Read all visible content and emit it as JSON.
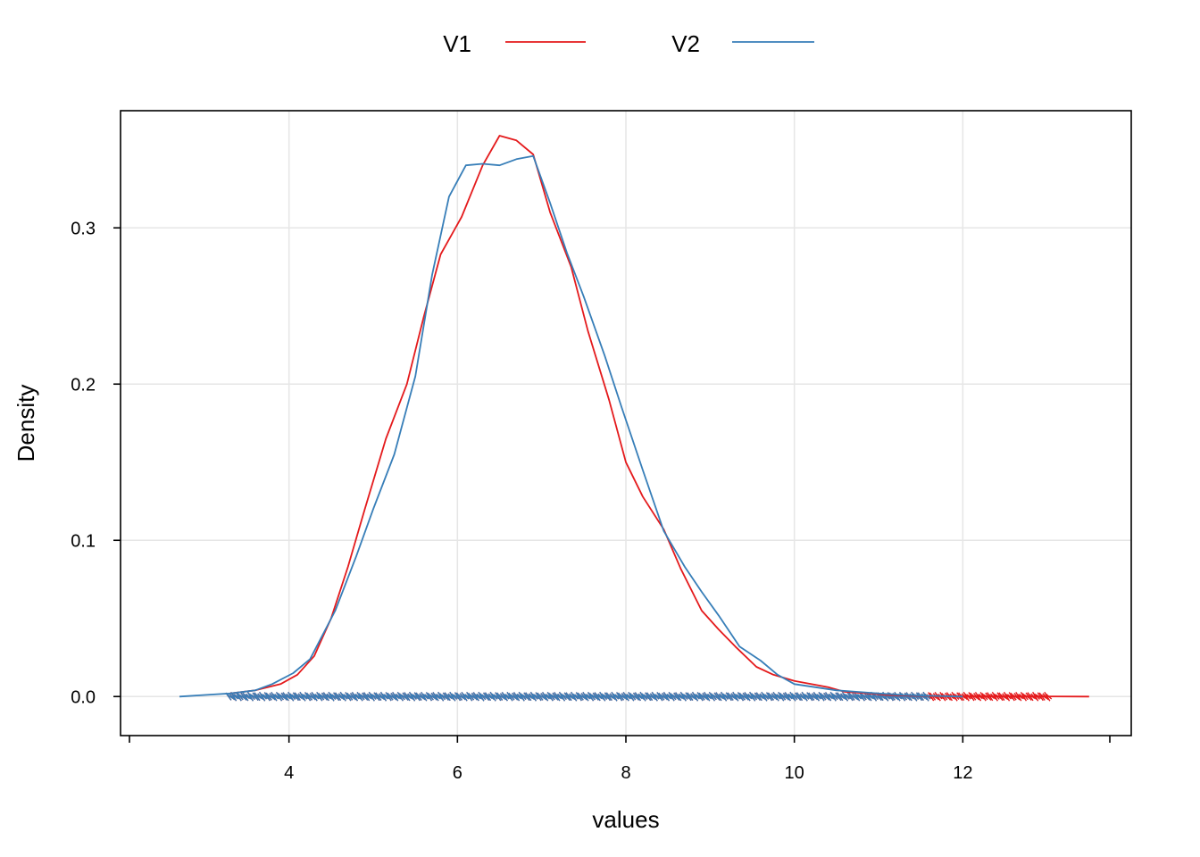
{
  "chart_data": {
    "type": "line",
    "title": "",
    "xlabel": "values",
    "ylabel": "Density",
    "xlim": [
      2.0,
      14.0
    ],
    "ylim": [
      -0.025,
      0.375
    ],
    "x_ticks": [
      4,
      6,
      8,
      10,
      12
    ],
    "x_tick_labels": [
      "4",
      "6",
      "8",
      "10",
      "12"
    ],
    "y_ticks": [
      0.0,
      0.1,
      0.2,
      0.3
    ],
    "y_tick_labels": [
      "0.0",
      "0.1",
      "0.2",
      "0.3"
    ],
    "grid": true,
    "legend": {
      "position": "top",
      "entries": [
        "V1",
        "V2"
      ]
    },
    "series": [
      {
        "name": "V1",
        "color": "#e41a1c",
        "x": [
          3.3,
          3.6,
          3.9,
          4.1,
          4.3,
          4.5,
          4.7,
          4.9,
          5.15,
          5.4,
          5.6,
          5.8,
          6.05,
          6.3,
          6.5,
          6.7,
          6.9,
          7.1,
          7.35,
          7.55,
          7.8,
          8.0,
          8.2,
          8.45,
          8.65,
          8.9,
          9.1,
          9.3,
          9.55,
          9.75,
          10.0,
          10.2,
          10.4,
          10.6,
          10.9,
          11.1,
          11.4,
          11.7,
          12.0,
          12.3,
          12.6,
          13.0,
          13.5
        ],
        "values": [
          0.002,
          0.004,
          0.008,
          0.014,
          0.026,
          0.05,
          0.083,
          0.12,
          0.165,
          0.2,
          0.243,
          0.283,
          0.307,
          0.34,
          0.359,
          0.356,
          0.347,
          0.31,
          0.275,
          0.234,
          0.19,
          0.15,
          0.128,
          0.107,
          0.082,
          0.055,
          0.043,
          0.032,
          0.019,
          0.014,
          0.01,
          0.008,
          0.006,
          0.003,
          0.002,
          0.001,
          0.0005,
          0.0003,
          0.0002,
          0.0001,
          0.0001,
          0.0001,
          0.0
        ]
      },
      {
        "name": "V2",
        "color": "#377eb8",
        "x": [
          2.7,
          3.0,
          3.3,
          3.6,
          3.8,
          4.05,
          4.25,
          4.55,
          4.8,
          5.0,
          5.25,
          5.5,
          5.7,
          5.9,
          6.1,
          6.3,
          6.5,
          6.7,
          6.9,
          7.1,
          7.3,
          7.5,
          7.75,
          7.95,
          8.2,
          8.45,
          8.7,
          8.9,
          9.1,
          9.35,
          9.6,
          9.8,
          10.0,
          10.25,
          10.5,
          10.75,
          11.0,
          11.3,
          11.6,
          12.0
        ],
        "values": [
          0.0,
          0.001,
          0.002,
          0.004,
          0.008,
          0.015,
          0.024,
          0.055,
          0.09,
          0.12,
          0.155,
          0.205,
          0.27,
          0.32,
          0.34,
          0.341,
          0.34,
          0.344,
          0.346,
          0.316,
          0.284,
          0.256,
          0.218,
          0.185,
          0.145,
          0.106,
          0.083,
          0.067,
          0.052,
          0.032,
          0.023,
          0.014,
          0.008,
          0.006,
          0.004,
          0.003,
          0.002,
          0.001,
          0.0005,
          0.0
        ]
      }
    ],
    "rug": [
      {
        "series": "V1",
        "range": [
          3.25,
          13.0
        ]
      },
      {
        "series": "V2",
        "range": [
          3.25,
          11.55
        ]
      }
    ]
  }
}
